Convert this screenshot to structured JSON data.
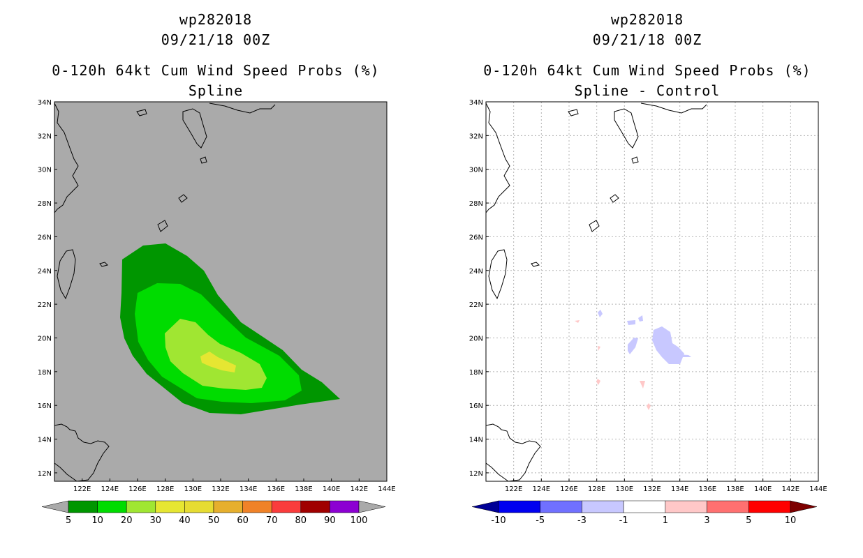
{
  "left_panel": {
    "title_line1": "wp282018",
    "title_line2": "09/21/18 00Z",
    "title_line3": "0-120h 64kt Cum Wind Speed Probs (%)",
    "title_line4": "Spline",
    "background_color": "#aaaaaa",
    "colorbar": {
      "colors": [
        "#009600",
        "#00dc00",
        "#a0e632",
        "#e6e632",
        "#e6dc32",
        "#e6af2d",
        "#f08228",
        "#fa3c3c",
        "#a00000",
        "#8c00d2"
      ],
      "under_color": "#aaaaaa",
      "over_color": "#aaaaaa",
      "labels": [
        "5",
        "10",
        "20",
        "30",
        "40",
        "50",
        "60",
        "70",
        "80",
        "90",
        "100"
      ]
    }
  },
  "right_panel": {
    "title_line1": "wp282018",
    "title_line2": "09/21/18 00Z",
    "title_line3": "0-120h 64kt Cum Wind Speed Probs (%)",
    "title_line4": "Spline - Control",
    "background_color": "#ffffff",
    "colorbar": {
      "colors": [
        "#0000f0",
        "#7070ff",
        "#c8c8ff",
        "#ffffff",
        "#ffc8c8",
        "#ff7070",
        "#ff0000"
      ],
      "under_color": "#000096",
      "over_color": "#7d0000",
      "labels": [
        "-10",
        "-5",
        "-3",
        "-1",
        "1",
        "3",
        "5",
        "10"
      ]
    }
  },
  "map_axes": {
    "lon_labels": [
      "122E",
      "124E",
      "126E",
      "128E",
      "130E",
      "132E",
      "134E",
      "136E",
      "138E",
      "140E",
      "142E",
      "144E"
    ],
    "lat_labels": [
      "12N",
      "14N",
      "16N",
      "18N",
      "20N",
      "22N",
      "24N",
      "26N",
      "28N",
      "30N",
      "32N",
      "34N"
    ]
  },
  "probability_contours": [
    {
      "level": "5-10",
      "color": "#009600"
    },
    {
      "level": "10-20",
      "color": "#00dc00"
    },
    {
      "level": "20-30",
      "color": "#a0e632"
    },
    {
      "level": "30-40",
      "color": "#e6e632"
    }
  ],
  "difference_patches": [
    {
      "sign": "negative",
      "color": "#c8c8ff"
    },
    {
      "sign": "positive",
      "color": "#ffc8c8"
    }
  ]
}
